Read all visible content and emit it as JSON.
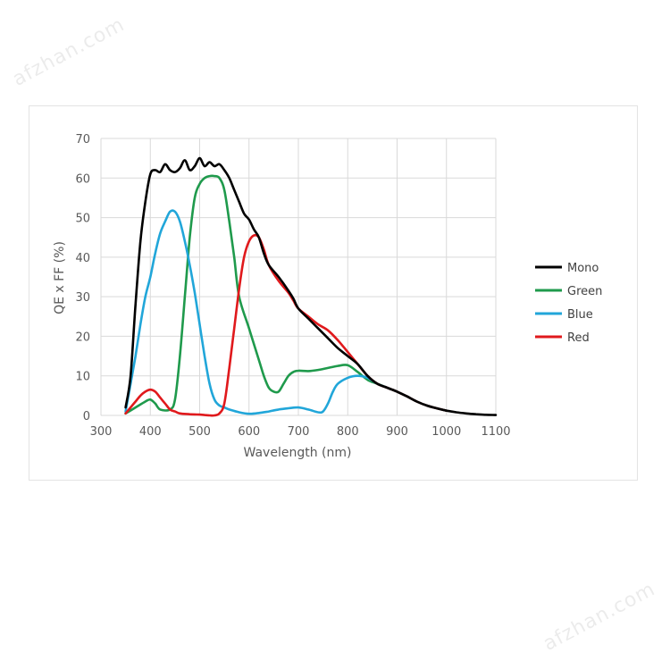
{
  "watermarks": [
    "afzhan.com",
    "afzhan.com"
  ],
  "chart_data": {
    "type": "line",
    "xlabel": "Wavelength (nm)",
    "ylabel": "QE x FF (%)",
    "xlim": [
      300,
      1100
    ],
    "ylim": [
      0,
      70
    ],
    "x_ticks": [
      300,
      400,
      500,
      600,
      700,
      800,
      900,
      1000,
      1100
    ],
    "y_ticks": [
      0,
      10,
      20,
      30,
      40,
      50,
      60,
      70
    ],
    "grid": true,
    "legend": "right",
    "series": [
      {
        "name": "Mono",
        "color": "#000000",
        "points": [
          [
            350,
            2
          ],
          [
            360,
            10
          ],
          [
            370,
            28
          ],
          [
            380,
            44
          ],
          [
            390,
            54
          ],
          [
            400,
            61
          ],
          [
            410,
            62
          ],
          [
            420,
            61.5
          ],
          [
            430,
            63.5
          ],
          [
            440,
            62
          ],
          [
            450,
            61.5
          ],
          [
            460,
            62.5
          ],
          [
            470,
            64.5
          ],
          [
            480,
            62
          ],
          [
            490,
            63
          ],
          [
            500,
            65
          ],
          [
            510,
            63
          ],
          [
            520,
            64
          ],
          [
            530,
            63
          ],
          [
            540,
            63.5
          ],
          [
            550,
            62
          ],
          [
            560,
            60
          ],
          [
            570,
            57
          ],
          [
            580,
            54
          ],
          [
            590,
            51
          ],
          [
            600,
            49.5
          ],
          [
            610,
            47
          ],
          [
            620,
            45
          ],
          [
            630,
            41
          ],
          [
            640,
            38
          ],
          [
            660,
            35
          ],
          [
            680,
            31.5
          ],
          [
            690,
            29.5
          ],
          [
            700,
            27
          ],
          [
            720,
            24.5
          ],
          [
            740,
            22
          ],
          [
            760,
            19.5
          ],
          [
            780,
            17
          ],
          [
            800,
            15
          ],
          [
            820,
            13
          ],
          [
            840,
            10
          ],
          [
            860,
            8
          ],
          [
            880,
            7
          ],
          [
            900,
            6
          ],
          [
            920,
            4.8
          ],
          [
            940,
            3.5
          ],
          [
            960,
            2.5
          ],
          [
            980,
            1.8
          ],
          [
            1000,
            1.2
          ],
          [
            1020,
            0.8
          ],
          [
            1040,
            0.5
          ],
          [
            1060,
            0.3
          ],
          [
            1080,
            0.15
          ],
          [
            1100,
            0.1
          ]
        ]
      },
      {
        "name": "Green",
        "color": "#1f9a4c",
        "points": [
          [
            350,
            0.5
          ],
          [
            370,
            2
          ],
          [
            390,
            3.5
          ],
          [
            400,
            4
          ],
          [
            410,
            3
          ],
          [
            420,
            1.5
          ],
          [
            440,
            1.5
          ],
          [
            450,
            4
          ],
          [
            460,
            15
          ],
          [
            470,
            30
          ],
          [
            480,
            45
          ],
          [
            490,
            55
          ],
          [
            500,
            58.5
          ],
          [
            510,
            60
          ],
          [
            520,
            60.5
          ],
          [
            530,
            60.5
          ],
          [
            540,
            60
          ],
          [
            550,
            57
          ],
          [
            560,
            49
          ],
          [
            570,
            40
          ],
          [
            580,
            30
          ],
          [
            600,
            22
          ],
          [
            620,
            14
          ],
          [
            630,
            10
          ],
          [
            640,
            7
          ],
          [
            650,
            6
          ],
          [
            660,
            6
          ],
          [
            670,
            8
          ],
          [
            680,
            10
          ],
          [
            690,
            11
          ],
          [
            700,
            11.3
          ],
          [
            720,
            11.2
          ],
          [
            740,
            11.5
          ],
          [
            760,
            12
          ],
          [
            780,
            12.5
          ],
          [
            800,
            12.7
          ],
          [
            820,
            11
          ],
          [
            840,
            9
          ],
          [
            860,
            8
          ],
          [
            880,
            7
          ],
          [
            900,
            6
          ],
          [
            920,
            4.8
          ],
          [
            940,
            3.5
          ],
          [
            960,
            2.5
          ],
          [
            980,
            1.8
          ],
          [
            1000,
            1.2
          ]
        ]
      },
      {
        "name": "Blue",
        "color": "#21a6d9",
        "points": [
          [
            350,
            1
          ],
          [
            360,
            8
          ],
          [
            370,
            15
          ],
          [
            380,
            23
          ],
          [
            390,
            30
          ],
          [
            400,
            35
          ],
          [
            410,
            41
          ],
          [
            420,
            46
          ],
          [
            430,
            49
          ],
          [
            440,
            51.5
          ],
          [
            450,
            51.5
          ],
          [
            460,
            49
          ],
          [
            470,
            44
          ],
          [
            480,
            38
          ],
          [
            490,
            31
          ],
          [
            500,
            23
          ],
          [
            510,
            15
          ],
          [
            520,
            8
          ],
          [
            530,
            4
          ],
          [
            540,
            2.5
          ],
          [
            550,
            2
          ],
          [
            560,
            1.5
          ],
          [
            580,
            0.8
          ],
          [
            600,
            0.4
          ],
          [
            620,
            0.6
          ],
          [
            640,
            1
          ],
          [
            660,
            1.5
          ],
          [
            680,
            1.8
          ],
          [
            700,
            2
          ],
          [
            720,
            1.5
          ],
          [
            740,
            0.8
          ],
          [
            750,
            1
          ],
          [
            760,
            3
          ],
          [
            770,
            6
          ],
          [
            780,
            8
          ],
          [
            800,
            9.5
          ],
          [
            820,
            10
          ],
          [
            840,
            9.5
          ],
          [
            860,
            8
          ],
          [
            880,
            7
          ],
          [
            900,
            6
          ],
          [
            920,
            4.8
          ],
          [
            940,
            3.5
          ],
          [
            960,
            2.5
          ],
          [
            980,
            1.8
          ],
          [
            1000,
            1.2
          ]
        ]
      },
      {
        "name": "Red",
        "color": "#e0191c",
        "points": [
          [
            350,
            0.5
          ],
          [
            360,
            2
          ],
          [
            370,
            3.5
          ],
          [
            380,
            5
          ],
          [
            390,
            6
          ],
          [
            400,
            6.5
          ],
          [
            410,
            6
          ],
          [
            420,
            4.5
          ],
          [
            430,
            3
          ],
          [
            440,
            1.5
          ],
          [
            450,
            1
          ],
          [
            460,
            0.5
          ],
          [
            480,
            0.3
          ],
          [
            500,
            0.2
          ],
          [
            510,
            0.1
          ],
          [
            520,
            0
          ],
          [
            530,
            0
          ],
          [
            540,
            0.5
          ],
          [
            550,
            3
          ],
          [
            560,
            12
          ],
          [
            570,
            22
          ],
          [
            580,
            32
          ],
          [
            590,
            40
          ],
          [
            600,
            44
          ],
          [
            610,
            45.5
          ],
          [
            620,
            45
          ],
          [
            630,
            42
          ],
          [
            640,
            38
          ],
          [
            660,
            34
          ],
          [
            680,
            31
          ],
          [
            690,
            29
          ],
          [
            700,
            27
          ],
          [
            720,
            25
          ],
          [
            740,
            23
          ],
          [
            760,
            21.5
          ],
          [
            780,
            19
          ],
          [
            800,
            16
          ],
          [
            820,
            13
          ],
          [
            840,
            10
          ],
          [
            860,
            8
          ],
          [
            880,
            7
          ],
          [
            900,
            6
          ],
          [
            920,
            4.8
          ],
          [
            940,
            3.5
          ],
          [
            960,
            2.5
          ],
          [
            980,
            1.8
          ],
          [
            1000,
            1.2
          ]
        ]
      }
    ]
  }
}
